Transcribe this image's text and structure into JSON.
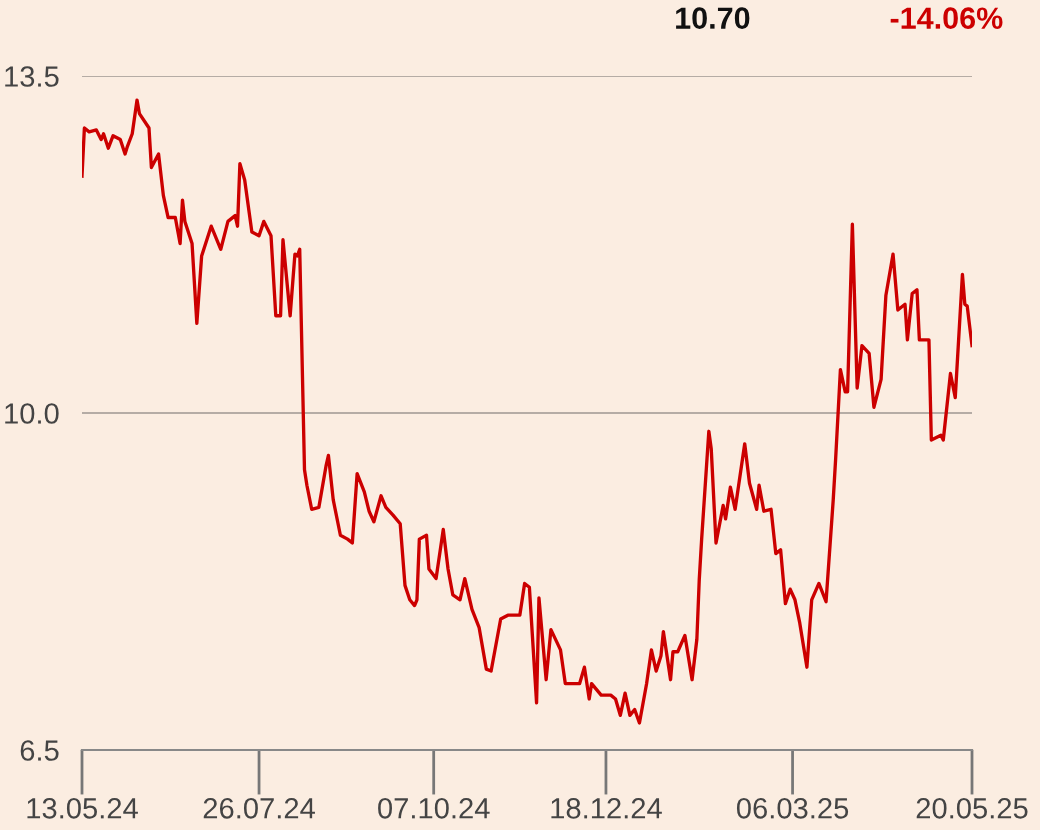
{
  "chart_data": {
    "type": "line",
    "annotations": [
      "10.70",
      "-14.06%"
    ],
    "ylim": [
      6.5,
      13.5
    ],
    "yticks": [
      {
        "value": 6.5,
        "label": "6.5"
      },
      {
        "value": 10,
        "label": "10.0"
      },
      {
        "value": 13.5,
        "label": "13.5"
      }
    ],
    "xlim": [
      "2024-05-13",
      "2025-05-20"
    ],
    "xticks": [
      {
        "value": "2024-05-13",
        "label": "13.05.24"
      },
      {
        "value": "2024-07-26",
        "label": "26.07.24"
      },
      {
        "value": "2024-10-07",
        "label": "07.10.24"
      },
      {
        "value": "2024-12-18",
        "label": "18.12.24"
      },
      {
        "value": "2025-03-06",
        "label": "06.03.25"
      },
      {
        "value": "2025-05-20",
        "label": "20.05.25"
      }
    ],
    "grid": "y",
    "legend": false,
    "series": [
      {
        "color": "#cc0000",
        "x": [
          "2024-05-13",
          "2024-05-14",
          "2024-05-16",
          "2024-05-19",
          "2024-05-21",
          "2024-05-22",
          "2024-05-24",
          "2024-05-26",
          "2024-05-29",
          "2024-05-31",
          "2024-06-01",
          "2024-06-03",
          "2024-06-05",
          "2024-06-06",
          "2024-06-10",
          "2024-06-11",
          "2024-06-14",
          "2024-06-16",
          "2024-06-18",
          "2024-06-21",
          "2024-06-23",
          "2024-06-24",
          "2024-06-25",
          "2024-06-28",
          "2024-06-30",
          "2024-07-02",
          "2024-07-06",
          "2024-07-10",
          "2024-07-13",
          "2024-07-16",
          "2024-07-17",
          "2024-07-18",
          "2024-07-20",
          "2024-07-23",
          "2024-07-26",
          "2024-07-28",
          "2024-07-31",
          "2024-08-02",
          "2024-08-04",
          "2024-08-05",
          "2024-08-08",
          "2024-08-10",
          "2024-08-11",
          "2024-08-12",
          "2024-08-14",
          "2024-08-15",
          "2024-08-17",
          "2024-08-20",
          "2024-08-23",
          "2024-08-24",
          "2024-08-26",
          "2024-08-29",
          "2024-09-01",
          "2024-09-03",
          "2024-09-05",
          "2024-09-08",
          "2024-09-10",
          "2024-09-12",
          "2024-09-15",
          "2024-09-17",
          "2024-09-20",
          "2024-09-23",
          "2024-09-25",
          "2024-09-27",
          "2024-09-29",
          "2024-09-30",
          "2024-10-01",
          "2024-10-04",
          "2024-10-05",
          "2024-10-08",
          "2024-10-11",
          "2024-10-13",
          "2024-10-15",
          "2024-10-18",
          "2024-10-20",
          "2024-10-23",
          "2024-10-26",
          "2024-10-29",
          "2024-10-31",
          "2024-11-04",
          "2024-11-07",
          "2024-11-12",
          "2024-11-14",
          "2024-11-16",
          "2024-11-19",
          "2024-11-20",
          "2024-11-23",
          "2024-11-25",
          "2024-11-29",
          "2024-12-01",
          "2024-12-07",
          "2024-12-09",
          "2024-12-11",
          "2024-12-12",
          "2024-12-16",
          "2024-12-20",
          "2024-12-22",
          "2024-12-24",
          "2024-12-26",
          "2024-12-28",
          "2024-12-30",
          "2025-01-01",
          "2025-01-04",
          "2025-01-06",
          "2025-01-08",
          "2025-01-10",
          "2025-01-11",
          "2025-01-14",
          "2025-01-15",
          "2025-01-17",
          "2025-01-20",
          "2025-01-23",
          "2025-01-25",
          "2025-01-26",
          "2025-01-27",
          "2025-01-30",
          "2025-01-31",
          "2025-02-02",
          "2025-02-05",
          "2025-02-06",
          "2025-02-08",
          "2025-02-10",
          "2025-02-14",
          "2025-02-16",
          "2025-02-19",
          "2025-02-20",
          "2025-02-22",
          "2025-02-25",
          "2025-02-27",
          "2025-03-01",
          "2025-03-03",
          "2025-03-05",
          "2025-03-07",
          "2025-03-09",
          "2025-03-12",
          "2025-03-14",
          "2025-03-17",
          "2025-03-20",
          "2025-03-23",
          "2025-03-24",
          "2025-03-26",
          "2025-03-28",
          "2025-03-29",
          "2025-03-31",
          "2025-04-02",
          "2025-04-04",
          "2025-04-07",
          "2025-04-09",
          "2025-04-12",
          "2025-04-14",
          "2025-04-17",
          "2025-04-19",
          "2025-04-22",
          "2025-04-23",
          "2025-04-25",
          "2025-04-27",
          "2025-04-28",
          "2025-05-02",
          "2025-05-03",
          "2025-05-07",
          "2025-05-08",
          "2025-05-11",
          "2025-05-13",
          "2025-05-16",
          "2025-05-17",
          "2025-05-18",
          "2025-05-20"
        ],
        "values": [
          12.46,
          12.96,
          12.92,
          12.94,
          12.84,
          12.9,
          12.75,
          12.88,
          12.84,
          12.69,
          12.77,
          12.9,
          13.25,
          13.11,
          12.96,
          12.55,
          12.69,
          12.26,
          12.03,
          12.03,
          11.76,
          12.21,
          11.99,
          11.76,
          10.93,
          11.63,
          11.94,
          11.7,
          11.99,
          12.05,
          11.94,
          12.59,
          12.42,
          11.88,
          11.84,
          11.99,
          11.84,
          11.01,
          11.01,
          11.8,
          11.01,
          11.65,
          11.63,
          11.7,
          9.41,
          9.25,
          9.0,
          9.02,
          9.45,
          9.56,
          9.1,
          8.73,
          8.69,
          8.65,
          9.37,
          9.18,
          8.98,
          8.87,
          9.14,
          9.02,
          8.94,
          8.85,
          8.21,
          8.06,
          8.0,
          8.06,
          8.69,
          8.73,
          8.38,
          8.28,
          8.79,
          8.38,
          8.11,
          8.06,
          8.28,
          7.96,
          7.77,
          7.34,
          7.32,
          7.86,
          7.9,
          7.9,
          8.23,
          8.19,
          6.99,
          8.08,
          7.23,
          7.75,
          7.54,
          7.19,
          7.19,
          7.36,
          7.03,
          7.19,
          7.07,
          7.07,
          7.03,
          6.86,
          7.09,
          6.86,
          6.92,
          6.78,
          7.19,
          7.54,
          7.32,
          7.48,
          7.73,
          7.23,
          7.52,
          7.52,
          7.69,
          7.23,
          7.65,
          8.27,
          8.69,
          9.81,
          9.63,
          8.65,
          9.04,
          8.9,
          9.23,
          9.0,
          9.68,
          9.27,
          9.0,
          9.25,
          8.98,
          9.0,
          8.54,
          8.58,
          8.02,
          8.17,
          8.06,
          7.82,
          7.36,
          8.06,
          8.23,
          8.04,
          9.1,
          9.52,
          10.45,
          10.22,
          10.22,
          11.96,
          10.26,
          10.7,
          10.62,
          10.06,
          10.35,
          11.22,
          11.65,
          11.07,
          11.13,
          10.76,
          11.24,
          11.28,
          10.76,
          10.76,
          9.72,
          9.77,
          9.72,
          10.41,
          10.16,
          11.44,
          11.13,
          11.11,
          10.7
        ]
      }
    ]
  }
}
